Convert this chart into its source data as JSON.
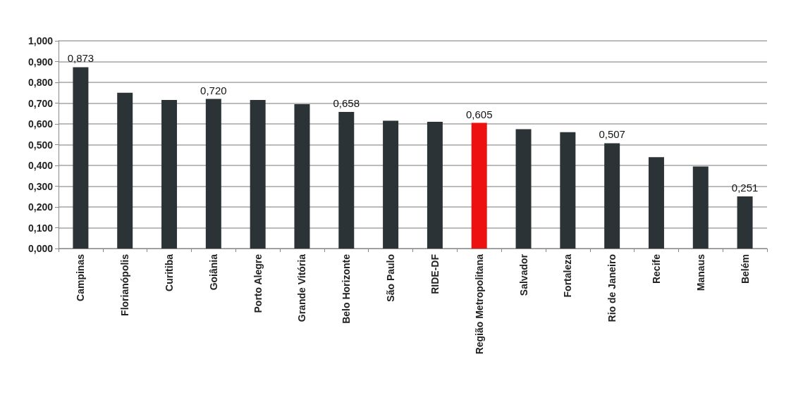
{
  "chart_data": {
    "type": "bar",
    "categories": [
      "Campinas",
      "Florianópolis",
      "Curitiba",
      "Goiânia",
      "Porto Alegre",
      "Grande Vitória",
      "Belo Horizonte",
      "São Paulo",
      "RIDE-DF",
      "Região Metropolitana",
      "Salvador",
      "Fortaleza",
      "Rio de Janeiro",
      "Recife",
      "Manaus",
      "Belém"
    ],
    "values": [
      0.873,
      0.75,
      0.715,
      0.72,
      0.715,
      0.695,
      0.658,
      0.615,
      0.61,
      0.605,
      0.575,
      0.56,
      0.507,
      0.44,
      0.395,
      0.251
    ],
    "colors": [
      "#2b3336",
      "#2b3336",
      "#2b3336",
      "#2b3336",
      "#2b3336",
      "#2b3336",
      "#2b3336",
      "#2b3336",
      "#2b3336",
      "#ee1111",
      "#2b3336",
      "#2b3336",
      "#2b3336",
      "#2b3336",
      "#2b3336",
      "#2b3336"
    ],
    "value_labels": [
      "0,873",
      null,
      null,
      "0,720",
      null,
      null,
      "0,658",
      null,
      null,
      "0,605",
      null,
      null,
      "0,507",
      null,
      null,
      "0,251"
    ],
    "ylim": [
      0,
      1
    ],
    "yticks": [
      {
        "value": 0,
        "label": "0,000"
      },
      {
        "value": 0.1,
        "label": "0,100"
      },
      {
        "value": 0.2,
        "label": "0,200"
      },
      {
        "value": 0.3,
        "label": "0,300"
      },
      {
        "value": 0.4,
        "label": "0,400"
      },
      {
        "value": 0.5,
        "label": "0,500"
      },
      {
        "value": 0.6,
        "label": "0,600"
      },
      {
        "value": 0.7,
        "label": "0,700"
      },
      {
        "value": 0.8,
        "label": "0,800"
      },
      {
        "value": 0.9,
        "label": "0,900"
      },
      {
        "value": 1,
        "label": "1,000"
      }
    ],
    "grid": "y"
  }
}
